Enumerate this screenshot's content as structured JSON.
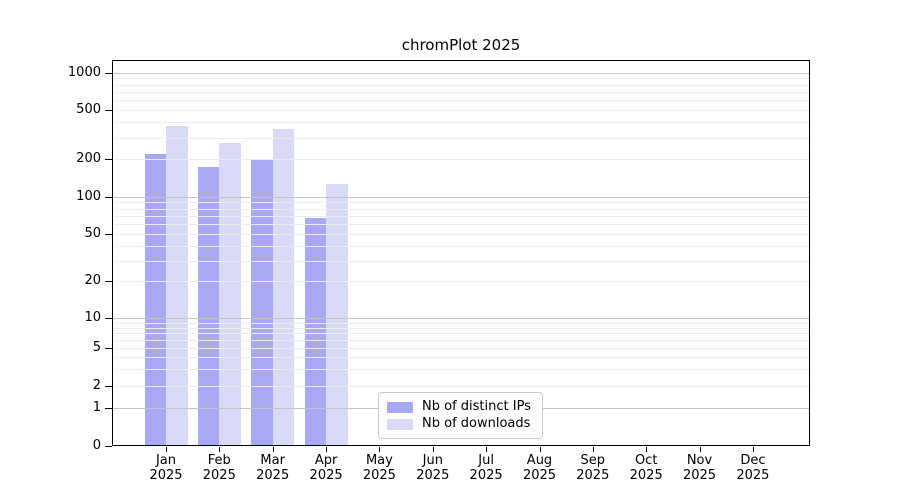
{
  "chart_data": {
    "type": "bar",
    "title": "chromPlot 2025",
    "year": "2025",
    "categories": [
      "Jan",
      "Feb",
      "Mar",
      "Apr",
      "May",
      "Jun",
      "Jul",
      "Aug",
      "Sep",
      "Oct",
      "Nov",
      "Dec"
    ],
    "series": [
      {
        "name": "Nb of distinct IPs",
        "color": "#a8a8f5",
        "values": [
          220,
          175,
          200,
          67,
          0,
          0,
          0,
          0,
          0,
          0,
          0,
          0
        ]
      },
      {
        "name": "Nb of downloads",
        "color": "#d9d9f8",
        "values": [
          375,
          272,
          350,
          126,
          0,
          0,
          0,
          0,
          0,
          0,
          0,
          0
        ]
      }
    ],
    "yscale": "log",
    "y_ticks": [
      0,
      1,
      2,
      5,
      10,
      20,
      50,
      100,
      200,
      500,
      1000
    ],
    "ylim": [
      0,
      1270
    ],
    "grid": true,
    "grid_major_color": "#c3c3c3",
    "grid_minor_color": "#ececec",
    "legend_position": "lower-center-inside"
  }
}
